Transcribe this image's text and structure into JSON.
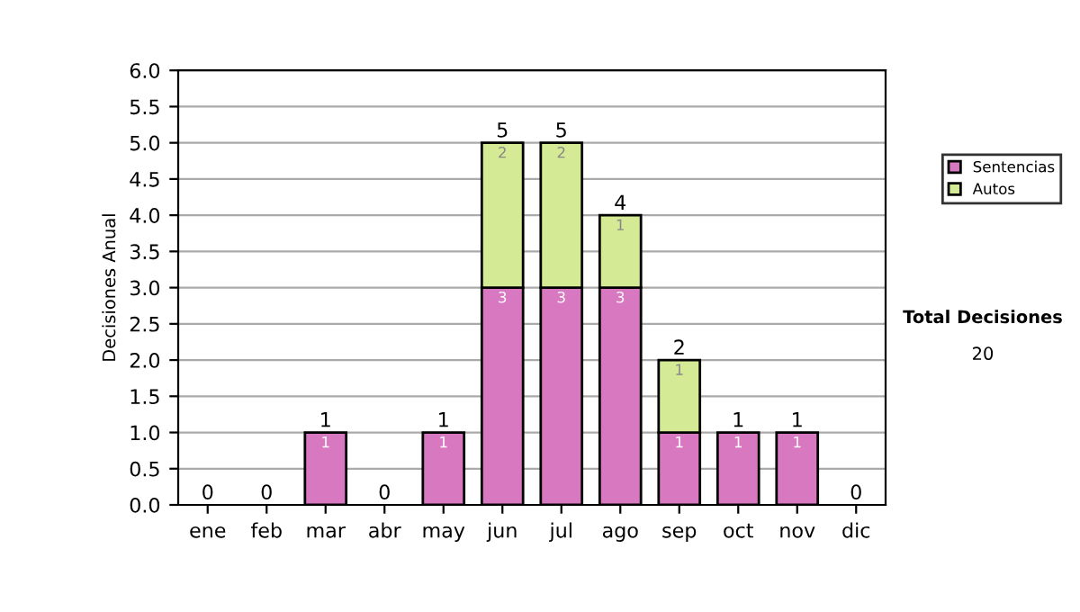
{
  "chart_data": {
    "type": "bar",
    "stacked": true,
    "ylabel": "Decisiones Anual",
    "categories": [
      "ene",
      "feb",
      "mar",
      "abr",
      "may",
      "jun",
      "jul",
      "ago",
      "sep",
      "oct",
      "nov",
      "dic"
    ],
    "series": [
      {
        "name": "Sentencias",
        "color": "#d878c0",
        "values": [
          0,
          0,
          1,
          0,
          1,
          3,
          3,
          3,
          1,
          1,
          1,
          0
        ],
        "value_labels": [
          null,
          null,
          "1",
          null,
          "1",
          "3",
          "3",
          "3",
          "1",
          "1",
          "1",
          null
        ]
      },
      {
        "name": "Autos",
        "color": "#d4ea94",
        "values": [
          0,
          0,
          0,
          0,
          0,
          2,
          2,
          1,
          1,
          0,
          0,
          0
        ],
        "value_labels": [
          null,
          null,
          null,
          null,
          null,
          "2",
          "2",
          "1",
          "1",
          null,
          null,
          null
        ]
      }
    ],
    "totals": [
      "0",
      "0",
      "1",
      "0",
      "1",
      "5",
      "5",
      "4",
      "2",
      "1",
      "1",
      "0"
    ],
    "ylim": [
      0,
      6
    ],
    "yticks": [
      {
        "value": 0,
        "label": "0.0"
      },
      {
        "value": 0.5,
        "label": "0.5"
      },
      {
        "value": 1,
        "label": "1.0"
      },
      {
        "value": 1.5,
        "label": "1.5"
      },
      {
        "value": 2,
        "label": "2.0"
      },
      {
        "value": 2.5,
        "label": "2.5"
      },
      {
        "value": 3,
        "label": "3.0"
      },
      {
        "value": 3.5,
        "label": "3.5"
      },
      {
        "value": 4,
        "label": "4.0"
      },
      {
        "value": 4.5,
        "label": "4.5"
      },
      {
        "value": 5,
        "label": "5.0"
      },
      {
        "value": 5.5,
        "label": "5.5"
      },
      {
        "value": 6,
        "label": "6.0"
      }
    ],
    "grid": "y",
    "legend": "right",
    "annotations": [
      "Total Decisiones",
      "20"
    ]
  }
}
